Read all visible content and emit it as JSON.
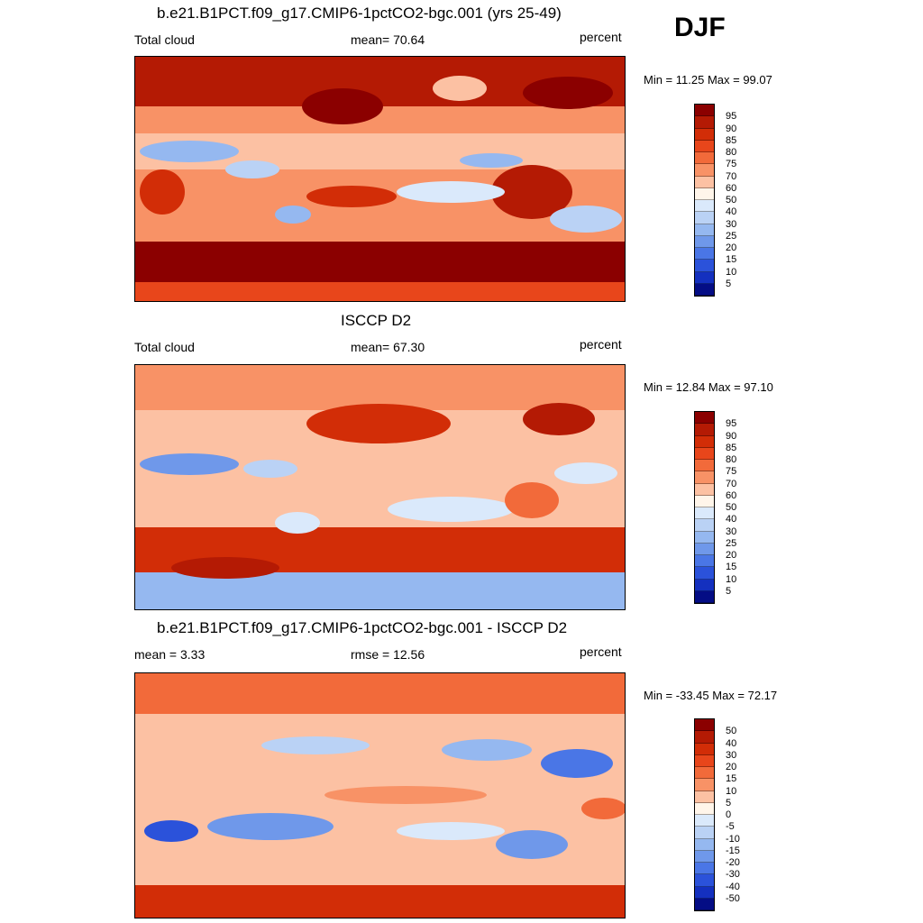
{
  "season": "DJF",
  "panels": [
    {
      "title": "b.e21.B1PCT.f09_g17.CMIP6-1pctCO2-bgc.001 (yrs 25-49)",
      "left_label": "Total cloud",
      "center_label": "mean=  70.64",
      "right_label": "percent",
      "minmax": "Min =  11.25 Max =  99.07"
    },
    {
      "title": "ISCCP D2",
      "left_label": "Total cloud",
      "center_label": "mean=  67.30",
      "right_label": "percent",
      "minmax": "Min =  12.84 Max =  97.10"
    },
    {
      "title": "b.e21.B1PCT.f09_g17.CMIP6-1pctCO2-bgc.001 - ISCCP D2",
      "left_label": "mean =   3.33",
      "center_label": "rmse =  12.56",
      "right_label": "percent",
      "minmax": "Min = -33.45 Max =  72.17"
    }
  ],
  "chart_data": [
    {
      "type": "heatmap",
      "title": "b.e21.B1PCT.f09_g17.CMIP6-1pctCO2-bgc.001 (yrs 25-49)",
      "variable": "Total cloud",
      "units": "percent",
      "mean": 70.64,
      "min": 11.25,
      "max": 99.07,
      "colorbar_levels": [
        "95",
        "90",
        "85",
        "80",
        "75",
        "70",
        "60",
        "50",
        "40",
        "30",
        "25",
        "20",
        "15",
        "10",
        "5"
      ],
      "colorbar_colors": [
        "#8b0000",
        "#b41a04",
        "#d22d07",
        "#e8461b",
        "#f26a3a",
        "#f89266",
        "#fcc1a3",
        "#fff5ea",
        "#dae9fb",
        "#bad2f5",
        "#95b8f0",
        "#6f98ea",
        "#4a76e6",
        "#2b52da",
        "#1430bf",
        "#040d85"
      ]
    },
    {
      "type": "heatmap",
      "title": "ISCCP D2",
      "variable": "Total cloud",
      "units": "percent",
      "mean": 67.3,
      "min": 12.84,
      "max": 97.1,
      "colorbar_levels": [
        "95",
        "90",
        "85",
        "80",
        "75",
        "70",
        "60",
        "50",
        "40",
        "30",
        "25",
        "20",
        "15",
        "10",
        "5"
      ],
      "colorbar_colors": [
        "#8b0000",
        "#b41a04",
        "#d22d07",
        "#e8461b",
        "#f26a3a",
        "#f89266",
        "#fcc1a3",
        "#fff5ea",
        "#dae9fb",
        "#bad2f5",
        "#95b8f0",
        "#6f98ea",
        "#4a76e6",
        "#2b52da",
        "#1430bf",
        "#040d85"
      ]
    },
    {
      "type": "heatmap",
      "title": "b.e21.B1PCT.f09_g17.CMIP6-1pctCO2-bgc.001 - ISCCP D2",
      "units": "percent",
      "mean": 3.33,
      "rmse": 12.56,
      "min": -33.45,
      "max": 72.17,
      "colorbar_levels": [
        "50",
        "40",
        "30",
        "20",
        "15",
        "10",
        "5",
        "0",
        "-5",
        "-10",
        "-15",
        "-20",
        "-30",
        "-40",
        "-50"
      ],
      "colorbar_colors": [
        "#8b0000",
        "#b41a04",
        "#d22d07",
        "#e8461b",
        "#f26a3a",
        "#f89266",
        "#fcc1a3",
        "#fff5ea",
        "#dae9fb",
        "#bad2f5",
        "#95b8f0",
        "#6f98ea",
        "#4a76e6",
        "#2b52da",
        "#1430bf",
        "#040d85"
      ]
    }
  ]
}
